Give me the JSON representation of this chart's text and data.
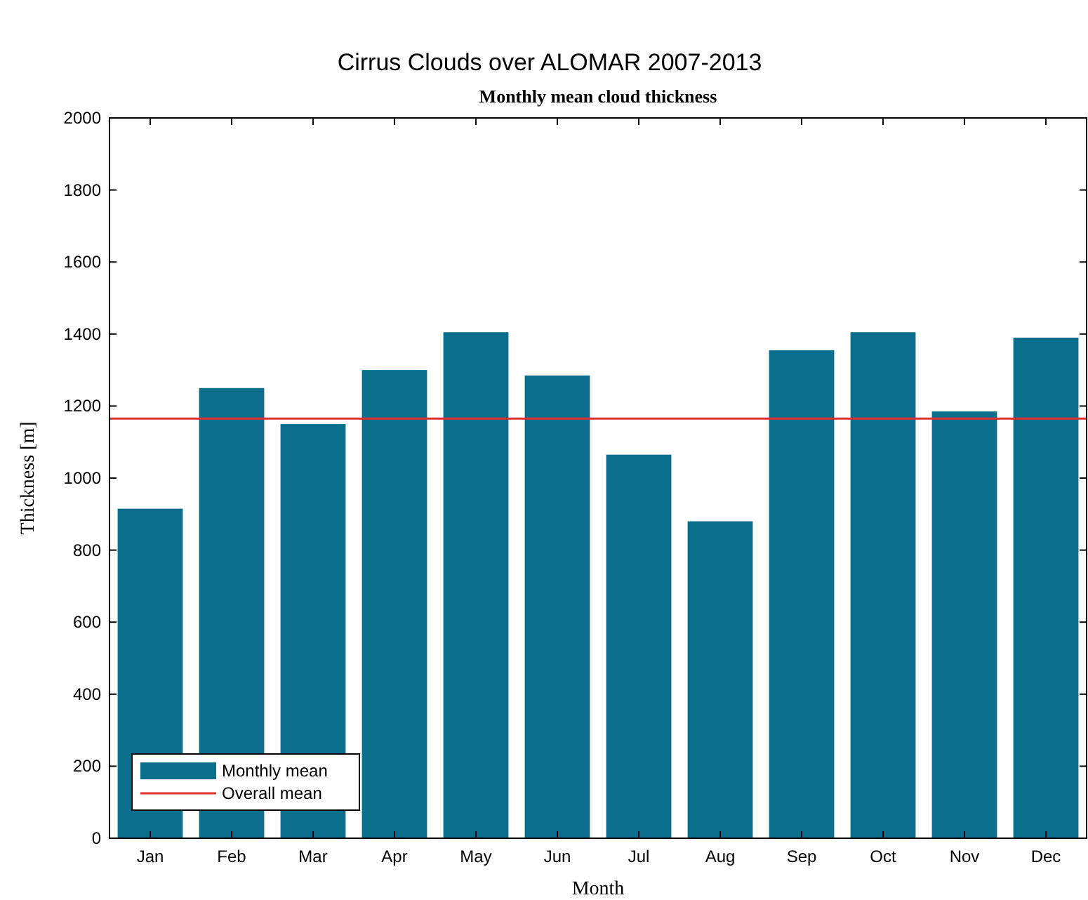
{
  "chart_data": {
    "type": "bar",
    "title": "Cirrus Clouds over ALOMAR 2007-2013",
    "subtitle": "Monthly mean cloud thickness",
    "xlabel": "Month",
    "ylabel": "Thickness [m]",
    "categories": [
      "Jan",
      "Feb",
      "Mar",
      "Apr",
      "May",
      "Jun",
      "Jul",
      "Aug",
      "Sep",
      "Oct",
      "Nov",
      "Dec"
    ],
    "series": [
      {
        "name": "Monthly mean",
        "color": "#0a6e8c",
        "values": [
          915,
          1250,
          1150,
          1300,
          1405,
          1285,
          1065,
          880,
          1355,
          1405,
          1185,
          1390
        ]
      }
    ],
    "ylim": [
      0,
      2000
    ],
    "yticks": [
      0,
      200,
      400,
      600,
      800,
      1000,
      1200,
      1400,
      1600,
      1800,
      2000
    ],
    "ref_lines": [
      {
        "axis": "y",
        "value": 1165,
        "label": "Overall mean",
        "color": "#e0302a"
      }
    ],
    "legend": "bottom left"
  }
}
